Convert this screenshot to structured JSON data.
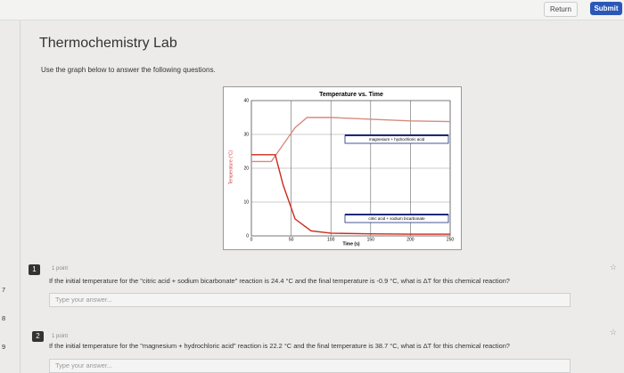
{
  "header": {
    "return": "Return",
    "submit": "Submit"
  },
  "gutter": [
    "7",
    "8",
    "9"
  ],
  "title": "Thermochemistry Lab",
  "instructions": "Use the graph below to answer the following questions.",
  "chart_data": {
    "type": "line",
    "title": "Temperature vs. Time",
    "x_label": "Time (s)",
    "y_label": "Temperature (°C)",
    "xlim": [
      0,
      250
    ],
    "xticks": [
      0,
      50,
      100,
      150,
      200,
      250
    ],
    "ylim": [
      0,
      40
    ],
    "yticks": [
      0,
      10,
      20,
      30,
      40
    ],
    "grid": true,
    "series": [
      {
        "name": "magnesium + hydrochloric acid",
        "color": "#d98a7e",
        "x": [
          0,
          25,
          40,
          55,
          70,
          100,
          150,
          200,
          250
        ],
        "values": [
          22,
          22,
          27,
          32,
          35,
          35,
          34.5,
          34,
          33.8
        ]
      },
      {
        "name": "citric acid + sodium bicarbonate",
        "color": "#cc2a1a",
        "x": [
          0,
          30,
          40,
          55,
          75,
          100,
          150,
          200,
          250
        ],
        "values": [
          24,
          24,
          15,
          5,
          1.5,
          0.8,
          0.6,
          0.5,
          0.5
        ]
      }
    ]
  },
  "questions": [
    {
      "number": "1",
      "points": "1 point",
      "text": "If the initial temperature for the \"citric acid + sodium bicarbonate\" reaction is 24.4 °C and the final temperature is -0.9 °C, what is ΔT for this chemical reaction?",
      "placeholder": "Type your answer..."
    },
    {
      "number": "2",
      "points": "1 point",
      "text": "If the initial temperature for the \"magnesium + hydrochloric acid\" reaction is 22.2 °C and the final temperature is 38.7 °C, what is ΔT for this chemical reaction?",
      "placeholder": "Type your answer..."
    }
  ]
}
